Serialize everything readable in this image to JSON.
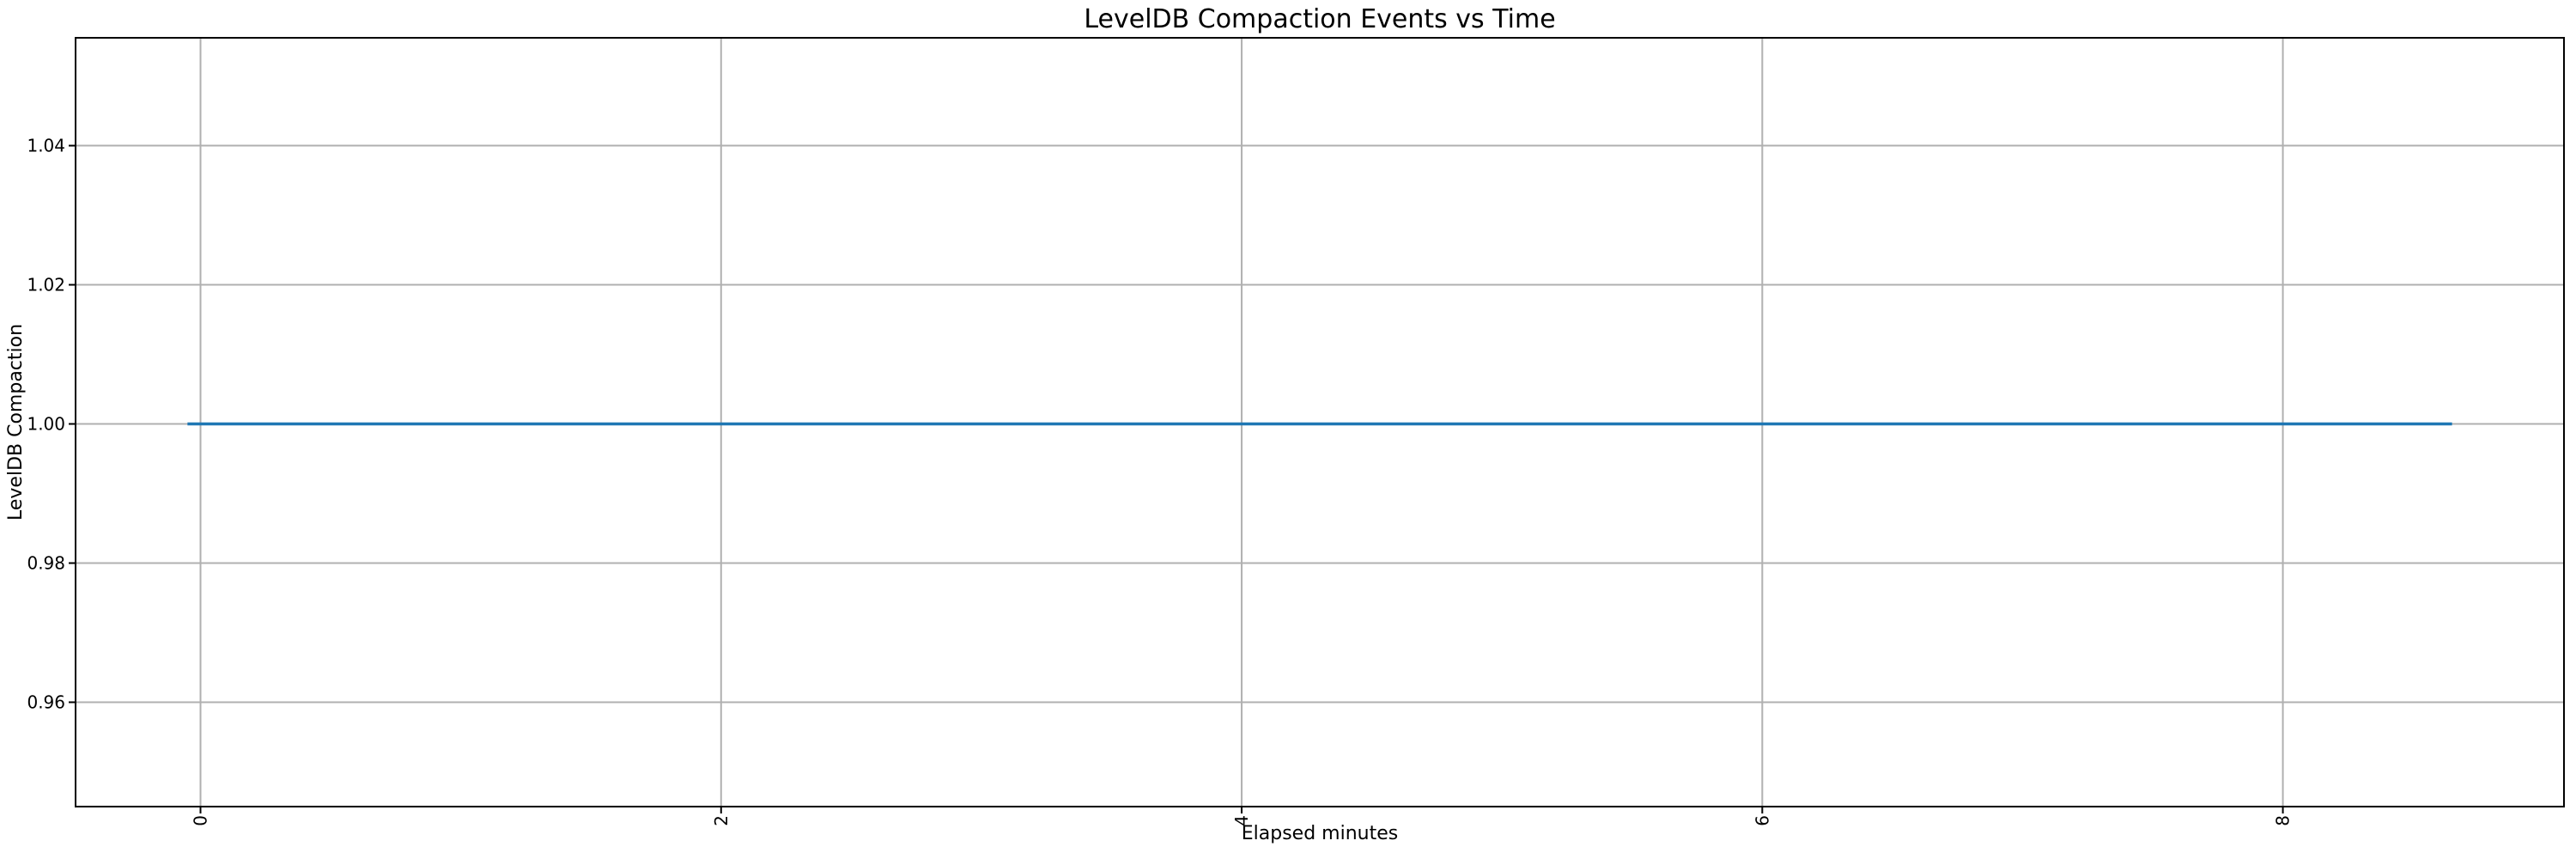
{
  "figure": {
    "background": "#ffffff",
    "title": "LevelDB Compaction Events vs Time"
  },
  "chart_data": {
    "type": "line",
    "title": "LevelDB Compaction Events vs Time",
    "xlabel": "Elapsed minutes",
    "ylabel": "LevelDB Compaction",
    "grid": true,
    "grid_color": "#b0b0b0",
    "spine_color": "#000000",
    "tick_color": "#000000",
    "legend_position": "none",
    "xlim": [
      -0.48,
      9.08
    ],
    "ylim": [
      0.945,
      1.0555
    ],
    "xticks": [
      0,
      2,
      4,
      6,
      8
    ],
    "xtick_labels": [
      "0",
      "2",
      "4",
      "6",
      "8"
    ],
    "xtick_rotation_deg": 90,
    "yticks": [
      0.96,
      0.98,
      1.0,
      1.02,
      1.04
    ],
    "ytick_labels": [
      "0.96",
      "0.98",
      "1.00",
      "1.02",
      "1.04"
    ],
    "series": [
      {
        "name": "LevelDB Compaction",
        "type": "line",
        "color": "#1f77b4",
        "line_width": 3.5,
        "x": [
          -0.05,
          8.65
        ],
        "y": [
          1.0,
          1.0
        ]
      }
    ]
  }
}
